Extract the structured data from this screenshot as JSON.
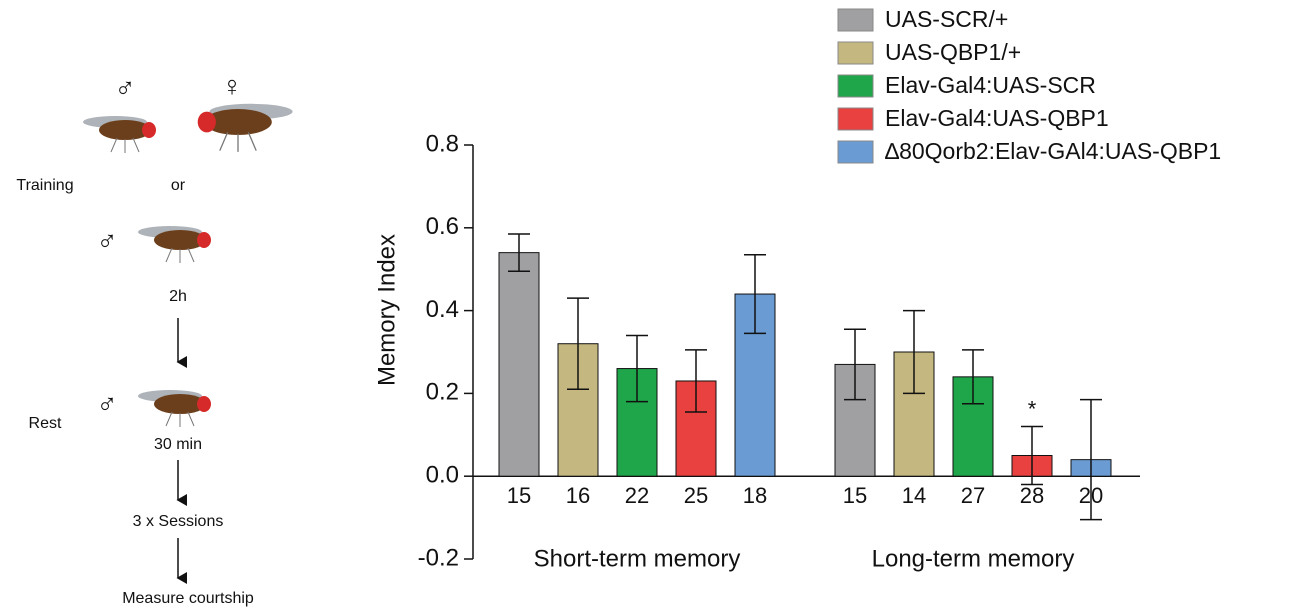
{
  "protocol": {
    "male_symbol": "♂",
    "female_symbol": "♀",
    "training": "Training",
    "or": "or",
    "interval": "2h",
    "rest": "Rest",
    "rest_time": "30 min",
    "sessions": "3 x Sessions",
    "measure": "Measure courtship"
  },
  "chart_data": {
    "type": "bar",
    "ylabel": "Memory Index",
    "categories": [
      "Short-term memory",
      "Long-term memory"
    ],
    "series": [
      {
        "name": "UAS-SCR/+",
        "color": "#a0a0a2",
        "values": [
          0.54,
          0.27
        ],
        "errors": [
          0.045,
          0.085
        ],
        "n": [
          15,
          15
        ]
      },
      {
        "name": "UAS-QBP1/+",
        "color": "#c4b77f",
        "values": [
          0.32,
          0.3
        ],
        "errors": [
          0.11,
          0.1
        ],
        "n": [
          16,
          14
        ]
      },
      {
        "name": "Elav-Gal4:UAS-SCR",
        "color": "#1fa64a",
        "values": [
          0.26,
          0.24
        ],
        "errors": [
          0.08,
          0.065
        ],
        "n": [
          22,
          27
        ]
      },
      {
        "name": "Elav-Gal4:UAS-QBP1",
        "color": "#e8413f",
        "values": [
          0.23,
          0.05
        ],
        "errors": [
          0.075,
          0.07
        ],
        "n": [
          25,
          28
        ]
      },
      {
        "name": "∆80Qorb2:Elav-GAl4:UAS-QBP1",
        "color": "#6a9bd3",
        "values": [
          0.44,
          0.04
        ],
        "errors": [
          0.095,
          0.145
        ],
        "n": [
          18,
          20
        ]
      }
    ],
    "annotation": "*",
    "ylim": [
      -0.2,
      0.8
    ],
    "yticks": [
      -0.2,
      {
        "value": 0,
        "label": "0.0"
      },
      0.2,
      0.4,
      0.6,
      0.8
    ],
    "legend": "top-right"
  }
}
